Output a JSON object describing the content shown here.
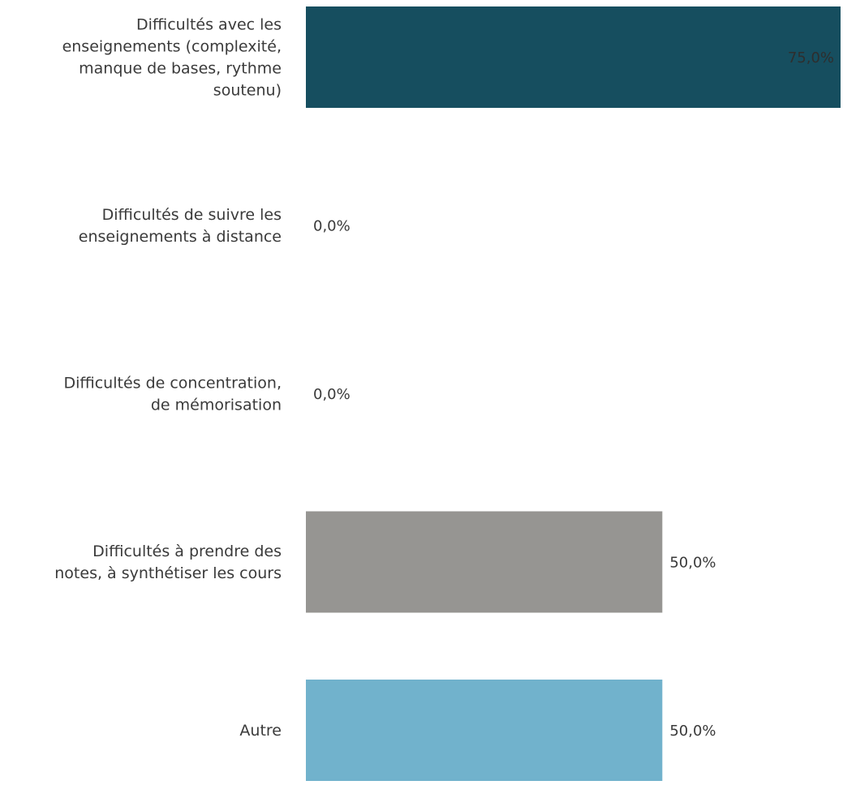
{
  "chart_data": {
    "type": "bar",
    "orientation": "horizontal",
    "categories": [
      "Difficultés avec les enseignements (complexité, manque de bases, rythme soutenu)",
      "Difficultés de suivre les enseignements à distance",
      "Difficultés de concentration, de mémorisation",
      "Difficultés à prendre des notes, à synthétiser les cours",
      "Autre"
    ],
    "category_lines": [
      [
        "Difficultés avec les",
        "enseignements (complexité,",
        "manque de bases, rythme",
        "soutenu)"
      ],
      [
        "Difficultés de suivre les",
        "enseignements à distance"
      ],
      [
        "Difficultés de concentration,",
        "de mémorisation"
      ],
      [
        "Difficultés à prendre des",
        "notes, à synthétiser les cours"
      ],
      [
        "Autre"
      ]
    ],
    "values": [
      75.0,
      0.0,
      0.0,
      50.0,
      50.0
    ],
    "value_labels": [
      "75,0%",
      "0,0%",
      "0,0%",
      "50,0%",
      "50,0%"
    ],
    "bar_colors": [
      "#164e5f",
      "#2f6f80",
      "#7a8a8f",
      "#969592",
      "#71b2cc"
    ],
    "value_label_positions": [
      "inside-end",
      "outside-end",
      "outside-end",
      "outside-end",
      "outside-end"
    ],
    "xlim": [
      0,
      75
    ],
    "title": "",
    "xlabel": "",
    "ylabel": "",
    "grid": false,
    "legend": false
  }
}
